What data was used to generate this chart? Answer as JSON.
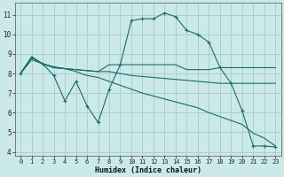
{
  "xlabel": "Humidex (Indice chaleur)",
  "bg_color": "#cce9e9",
  "grid_color": "#aacfcf",
  "line_color": "#1a6b6b",
  "xlim": [
    -0.5,
    23.5
  ],
  "ylim": [
    3.8,
    11.6
  ],
  "yticks": [
    4,
    5,
    6,
    7,
    8,
    9,
    10,
    11
  ],
  "xticks": [
    0,
    1,
    2,
    3,
    4,
    5,
    6,
    7,
    8,
    9,
    10,
    11,
    12,
    13,
    14,
    15,
    16,
    17,
    18,
    19,
    20,
    21,
    22,
    23
  ],
  "line1_x": [
    0,
    1,
    2,
    3,
    4,
    5,
    6,
    7,
    8,
    9,
    10,
    11,
    12,
    13,
    14,
    15,
    16,
    17,
    18,
    19,
    20,
    21,
    22,
    23
  ],
  "line1_y": [
    8.0,
    8.8,
    8.5,
    7.9,
    6.6,
    7.6,
    6.35,
    5.5,
    7.2,
    8.45,
    10.7,
    10.8,
    10.8,
    11.1,
    10.9,
    10.2,
    10.0,
    9.6,
    8.3,
    7.5,
    6.1,
    4.3,
    4.3,
    4.25
  ],
  "line2_x": [
    0,
    1,
    2,
    3,
    4,
    5,
    6,
    7,
    8,
    9,
    10,
    11,
    12,
    13,
    14,
    15,
    16,
    17,
    18,
    19,
    20,
    21,
    22,
    23
  ],
  "line2_y": [
    8.0,
    8.85,
    8.5,
    8.3,
    8.25,
    8.2,
    8.15,
    8.1,
    8.45,
    8.45,
    8.45,
    8.45,
    8.45,
    8.45,
    8.45,
    8.2,
    8.2,
    8.2,
    8.3,
    8.3,
    8.3,
    8.3,
    8.3,
    8.3
  ],
  "line3_x": [
    0,
    1,
    2,
    3,
    4,
    5,
    6,
    7,
    8,
    9,
    10,
    11,
    12,
    13,
    14,
    15,
    16,
    17,
    18,
    19,
    20,
    21,
    22,
    23
  ],
  "line3_y": [
    8.0,
    8.85,
    8.5,
    8.3,
    8.25,
    8.2,
    8.15,
    8.1,
    8.1,
    8.0,
    7.9,
    7.85,
    7.8,
    7.75,
    7.7,
    7.65,
    7.6,
    7.55,
    7.5,
    7.5,
    7.5,
    7.5,
    7.5,
    7.5
  ],
  "line4_x": [
    0,
    1,
    2,
    3,
    4,
    5,
    6,
    7,
    8,
    9,
    10,
    11,
    12,
    13,
    14,
    15,
    16,
    17,
    18,
    19,
    20,
    21,
    22,
    23
  ],
  "line4_y": [
    8.0,
    8.7,
    8.5,
    8.35,
    8.25,
    8.1,
    7.9,
    7.8,
    7.6,
    7.4,
    7.2,
    7.0,
    6.85,
    6.7,
    6.55,
    6.4,
    6.25,
    6.0,
    5.8,
    5.6,
    5.4,
    4.95,
    4.7,
    4.3
  ]
}
